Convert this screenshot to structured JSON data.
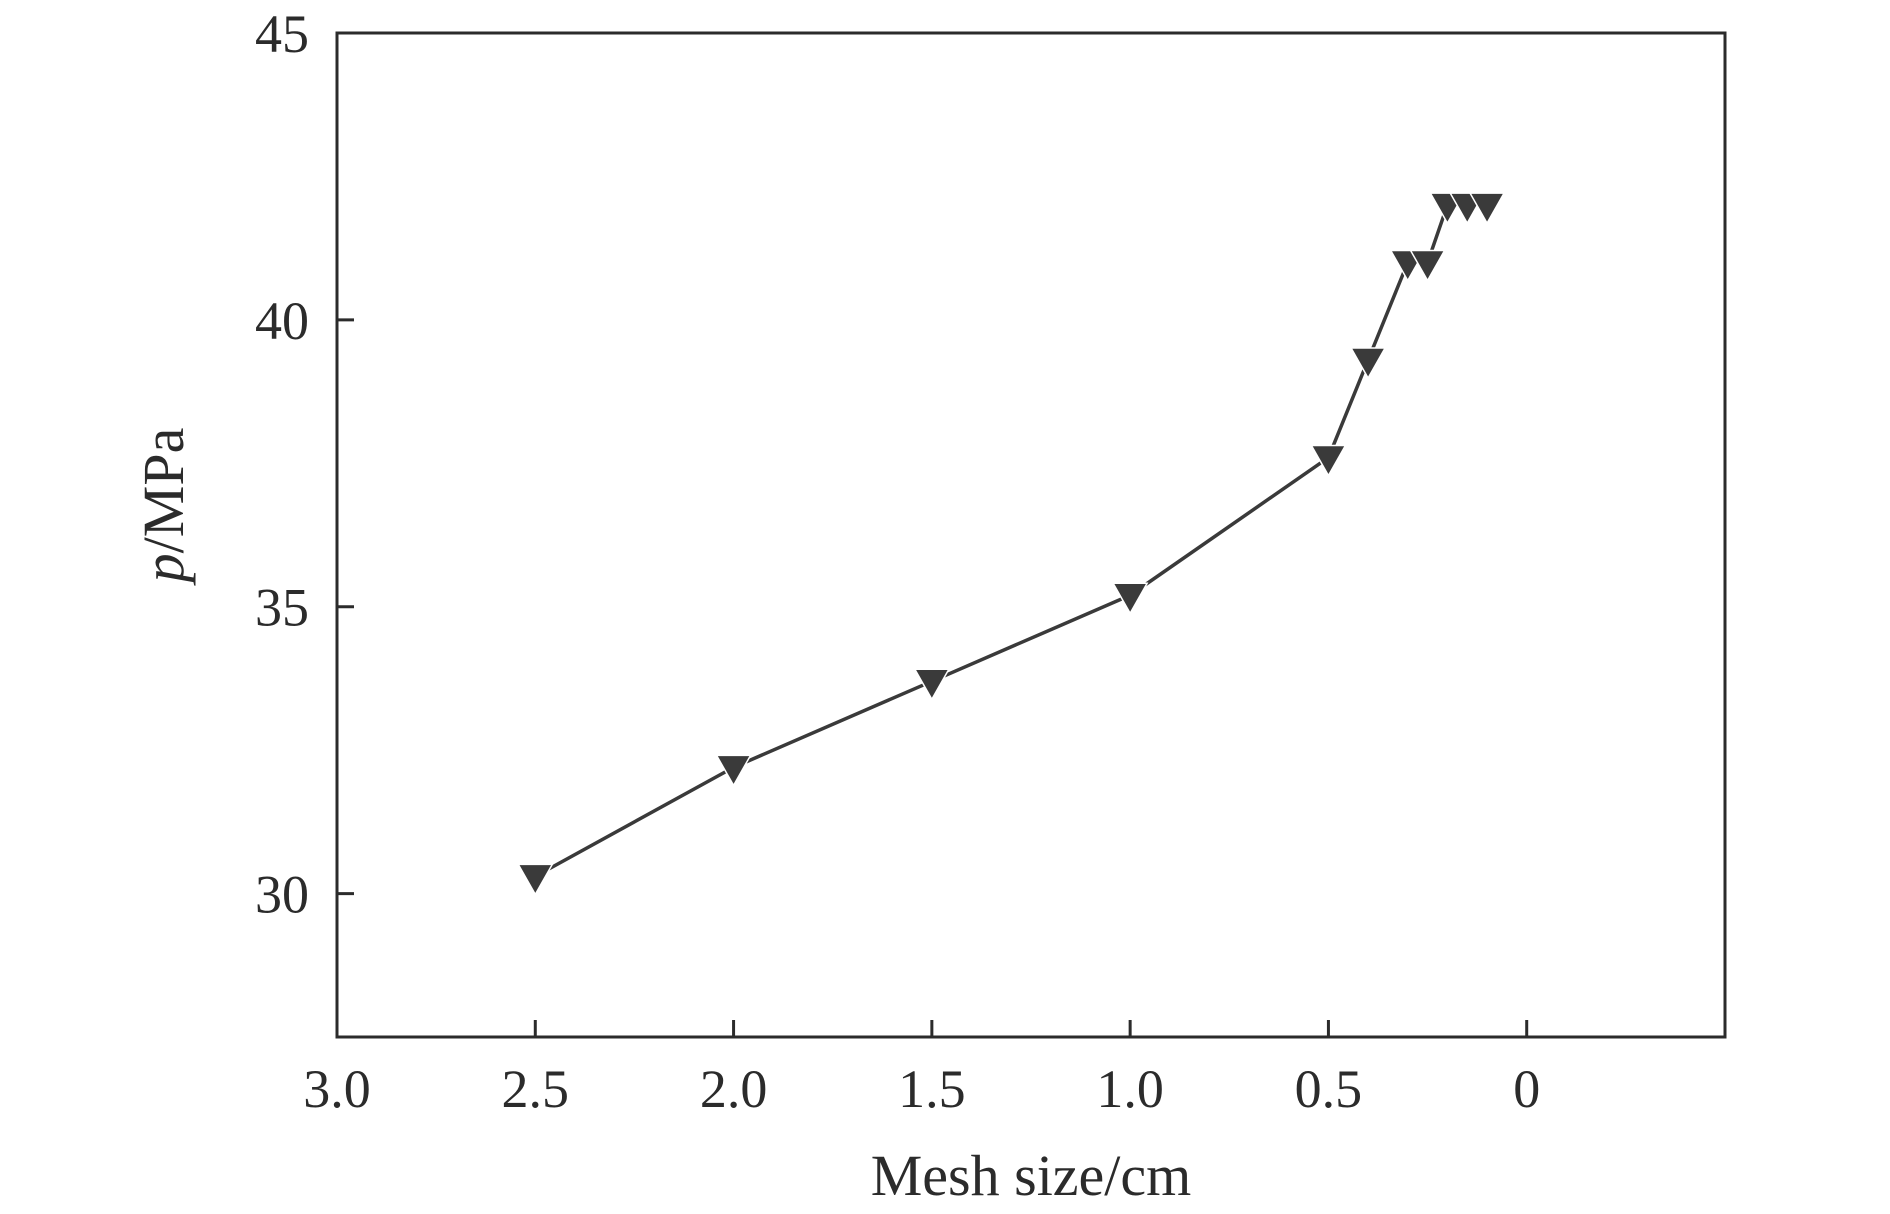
{
  "chart_data": {
    "type": "line",
    "title": "",
    "xlabel": "Mesh size/cm",
    "ylabel_var": "p",
    "ylabel_unit": "/MPa",
    "xlim": [
      3.0,
      -0.5
    ],
    "ylim": [
      27.5,
      45
    ],
    "x_reversed": true,
    "x_ticks": [
      3.0,
      2.5,
      2.0,
      1.5,
      1.0,
      0.5,
      0
    ],
    "x_tick_labels": [
      "3.0",
      "2.5",
      "2.0",
      "1.5",
      "1.0",
      "0.5",
      "0"
    ],
    "y_ticks": [
      30,
      35,
      40,
      45
    ],
    "y_tick_labels": [
      "30",
      "35",
      "40",
      "45"
    ],
    "grid": false,
    "marker": "down-triangle",
    "series": [
      {
        "x": [
          2.5,
          2.0,
          1.5,
          1.0,
          0.5,
          0.4,
          0.3,
          0.25,
          0.2,
          0.15,
          0.1
        ],
        "y": [
          30.3,
          32.2,
          33.7,
          35.2,
          37.6,
          39.3,
          41.0,
          41.0,
          42.0,
          42.0,
          42.0
        ]
      }
    ],
    "colors": {
      "line": "#3a3a3a",
      "marker": "#3a3a3a",
      "axis": "#2b2b2b"
    }
  }
}
